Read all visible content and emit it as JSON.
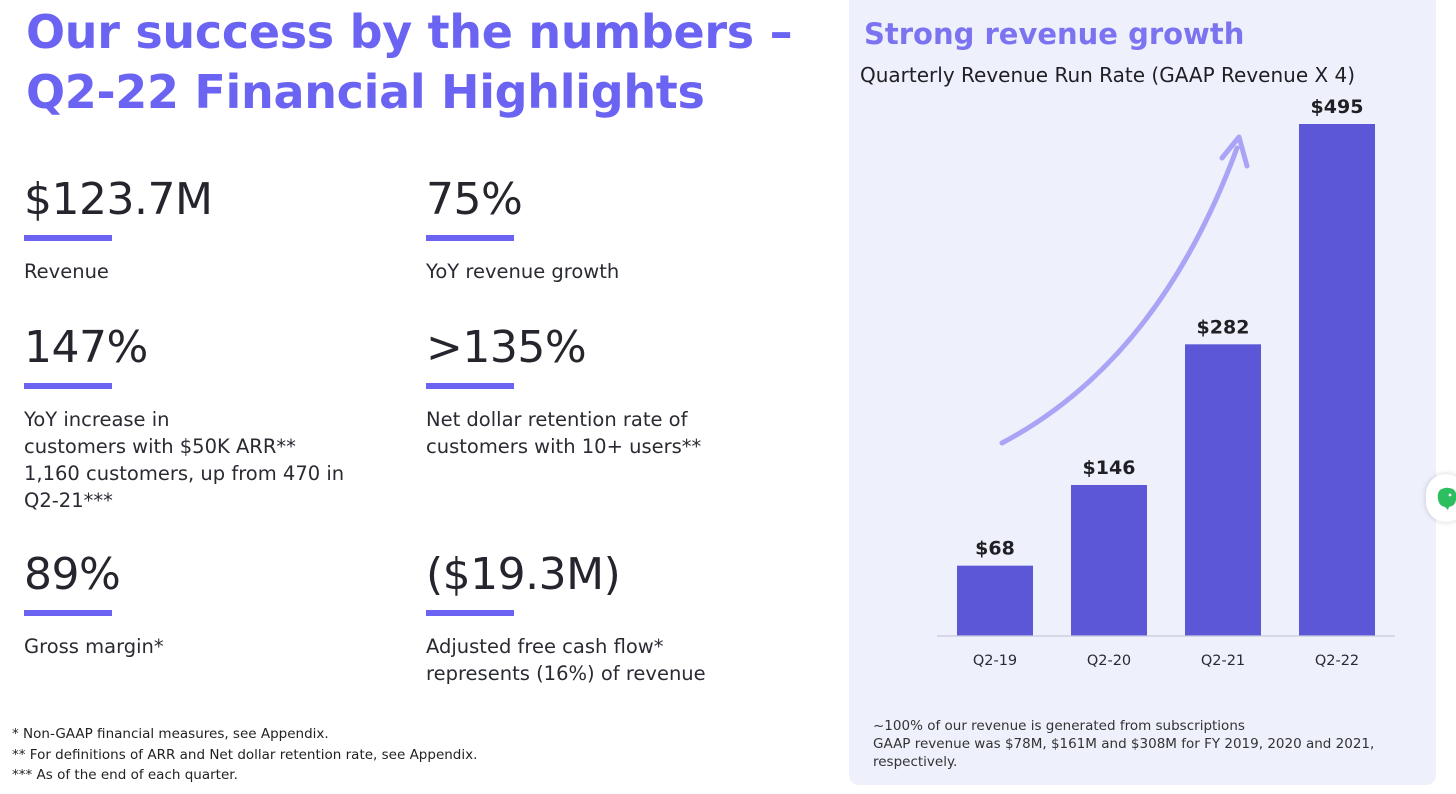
{
  "title": {
    "line1": "Our success by the numbers –",
    "line2": "Q2-22 Financial Highlights"
  },
  "metrics": [
    {
      "value": "$123.7M",
      "desc": [
        "Revenue"
      ]
    },
    {
      "value": "75%",
      "desc": [
        "YoY revenue growth"
      ]
    },
    {
      "value": "147%",
      "desc": [
        "YoY increase in",
        "customers with $50K ARR**",
        "1,160 customers, up from 470 in",
        "Q2-21***"
      ]
    },
    {
      "value": ">135%",
      "desc": [
        "Net dollar retention rate of",
        "customers with 10+ users**"
      ]
    },
    {
      "value": "89%",
      "desc": [
        "Gross margin*"
      ]
    },
    {
      "value": "($19.3M)",
      "desc": [
        "Adjusted free cash flow*",
        "represents (16%) of revenue"
      ]
    }
  ],
  "footnotes": [
    "* Non-GAAP financial measures, see Appendix.",
    "** For definitions of ARR and Net dollar retention rate, see Appendix.",
    "*** As of the end of each quarter."
  ],
  "panel": {
    "heading": "Strong revenue growth",
    "notes": [
      "~100% of our revenue is generated from subscriptions",
      "GAAP revenue was $78M, $161M and $308M for FY 2019, 2020 and 2021,",
      "respectively."
    ]
  },
  "colors": {
    "accent": "#6b63f2",
    "bar": "#5b57d6",
    "panel_bg": "#eef0fb",
    "arrow": "#a9a4f5"
  },
  "chart_data": {
    "type": "bar",
    "title": "Quarterly Revenue Run Rate (GAAP Revenue X 4)",
    "categories": [
      "Q2-19",
      "Q2-20",
      "Q2-21",
      "Q2-22"
    ],
    "values": [
      68,
      146,
      282,
      495
    ],
    "value_labels": [
      "$68",
      "$146",
      "$282",
      "$495"
    ],
    "ylim": [
      0,
      495
    ],
    "grid": false,
    "legend": "none"
  }
}
